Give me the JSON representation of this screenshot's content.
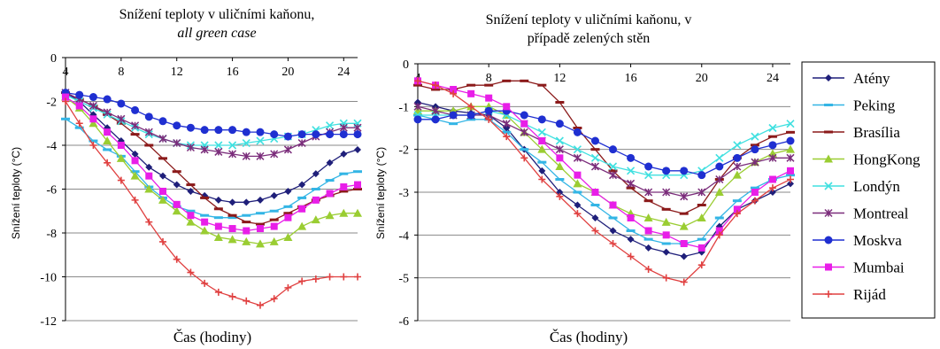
{
  "chart_data": [
    {
      "type": "line",
      "title": "Snížení teploty v uličními kaňonu,",
      "subtitle": "all green case",
      "xlabel": "Čas (hodiny)",
      "ylabel": "Snížení teploty (°C)",
      "xlim": [
        4,
        25
      ],
      "ylim": [
        -12,
        0
      ],
      "xticks": [
        4,
        8,
        12,
        16,
        20,
        24
      ],
      "yticks": [
        0,
        -2,
        -4,
        -6,
        -8,
        -10,
        -12
      ],
      "grid": "horizontal",
      "x": [
        4,
        5,
        6,
        7,
        8,
        9,
        10,
        11,
        12,
        13,
        14,
        15,
        16,
        17,
        18,
        19,
        20,
        21,
        22,
        23,
        24,
        25
      ],
      "series": [
        {
          "name": "Atény",
          "color": "#1f1f7a",
          "marker": "diamond",
          "values": [
            -1.6,
            -2.0,
            -2.6,
            -3.2,
            -3.8,
            -4.4,
            -5.0,
            -5.4,
            -5.8,
            -6.1,
            -6.3,
            -6.5,
            -6.6,
            -6.6,
            -6.5,
            -6.3,
            -6.1,
            -5.8,
            -5.3,
            -4.8,
            -4.4,
            -4.2
          ]
        },
        {
          "name": "Peking",
          "color": "#33b5e5",
          "marker": "dash",
          "values": [
            -2.8,
            -3.2,
            -3.8,
            -4.2,
            -4.5,
            -5.2,
            -5.9,
            -6.4,
            -6.8,
            -7.0,
            -7.2,
            -7.3,
            -7.3,
            -7.2,
            -7.1,
            -7.0,
            -6.8,
            -6.4,
            -6.0,
            -5.6,
            -5.3,
            -5.2
          ]
        },
        {
          "name": "Brasília",
          "color": "#8b1a1a",
          "marker": "dash",
          "values": [
            -1.6,
            -1.9,
            -2.2,
            -2.6,
            -3.0,
            -3.5,
            -4.0,
            -4.6,
            -5.2,
            -5.8,
            -6.4,
            -6.9,
            -7.2,
            -7.5,
            -7.6,
            -7.4,
            -7.1,
            -6.8,
            -6.5,
            -6.3,
            -6.1,
            -6.0
          ]
        },
        {
          "name": "HongKong",
          "color": "#9acd32",
          "marker": "triangle",
          "values": [
            -1.8,
            -2.3,
            -3.0,
            -3.8,
            -4.6,
            -5.4,
            -6.0,
            -6.5,
            -7.0,
            -7.5,
            -7.9,
            -8.2,
            -8.3,
            -8.4,
            -8.5,
            -8.4,
            -8.2,
            -7.7,
            -7.4,
            -7.2,
            -7.1,
            -7.1
          ]
        },
        {
          "name": "Londýn",
          "color": "#40e0e0",
          "marker": "x",
          "values": [
            -1.7,
            -2.0,
            -2.3,
            -2.6,
            -2.9,
            -3.2,
            -3.5,
            -3.7,
            -3.9,
            -4.0,
            -4.0,
            -4.0,
            -4.0,
            -3.9,
            -3.8,
            -3.7,
            -3.6,
            -3.5,
            -3.3,
            -3.1,
            -3.0,
            -3.0
          ]
        },
        {
          "name": "Montreal",
          "color": "#7b2d7b",
          "marker": "star",
          "values": [
            -1.6,
            -1.9,
            -2.2,
            -2.5,
            -2.8,
            -3.1,
            -3.4,
            -3.7,
            -3.9,
            -4.1,
            -4.2,
            -4.3,
            -4.4,
            -4.5,
            -4.5,
            -4.4,
            -4.2,
            -3.9,
            -3.6,
            -3.4,
            -3.2,
            -3.2
          ]
        },
        {
          "name": "Moskva",
          "color": "#1f2fd1",
          "marker": "circle",
          "values": [
            -1.6,
            -1.7,
            -1.8,
            -1.9,
            -2.1,
            -2.4,
            -2.7,
            -2.9,
            -3.1,
            -3.2,
            -3.3,
            -3.3,
            -3.3,
            -3.4,
            -3.4,
            -3.5,
            -3.6,
            -3.5,
            -3.5,
            -3.5,
            -3.5,
            -3.5
          ]
        },
        {
          "name": "Mumbai",
          "color": "#e81ee8",
          "marker": "square",
          "values": [
            -1.8,
            -2.2,
            -2.8,
            -3.4,
            -4.0,
            -4.7,
            -5.4,
            -6.1,
            -6.7,
            -7.2,
            -7.5,
            -7.7,
            -7.8,
            -7.9,
            -7.8,
            -7.7,
            -7.3,
            -6.9,
            -6.5,
            -6.2,
            -5.9,
            -5.8
          ]
        },
        {
          "name": "Rijád",
          "color": "#e04040",
          "marker": "plus",
          "values": [
            -2.0,
            -3.0,
            -4.0,
            -4.8,
            -5.6,
            -6.5,
            -7.5,
            -8.4,
            -9.2,
            -9.8,
            -10.3,
            -10.7,
            -10.9,
            -11.1,
            -11.3,
            -11.0,
            -10.5,
            -10.2,
            -10.1,
            -10.0,
            -10.0,
            -10.0
          ]
        }
      ]
    },
    {
      "type": "line",
      "title": "Snížení teploty v uličními kaňonu, v",
      "subtitle": "případě  zelených stěn",
      "xlabel": "Čas (hodiny)",
      "ylabel": "Snížení teploty (°C)",
      "xlim": [
        4,
        25
      ],
      "ylim": [
        -6,
        0
      ],
      "xticks": [
        4,
        8,
        12,
        16,
        20,
        24
      ],
      "yticks": [
        0,
        -1,
        -2,
        -3,
        -4,
        -5,
        -6
      ],
      "grid": "horizontal",
      "legend": "right",
      "x": [
        4,
        5,
        6,
        7,
        8,
        9,
        10,
        11,
        12,
        13,
        14,
        15,
        16,
        17,
        18,
        19,
        20,
        21,
        22,
        23,
        24,
        25
      ],
      "series": [
        {
          "name": "Atény",
          "color": "#1f1f7a",
          "marker": "diamond",
          "values": [
            -0.9,
            -1.0,
            -1.1,
            -1.15,
            -1.2,
            -1.5,
            -2.0,
            -2.5,
            -3.0,
            -3.3,
            -3.6,
            -3.9,
            -4.1,
            -4.3,
            -4.4,
            -4.5,
            -4.4,
            -3.8,
            -3.4,
            -3.2,
            -3.0,
            -2.8
          ]
        },
        {
          "name": "Peking",
          "color": "#33b5e5",
          "marker": "dash",
          "values": [
            -1.2,
            -1.3,
            -1.4,
            -1.3,
            -1.3,
            -1.6,
            -2.0,
            -2.3,
            -2.7,
            -3.0,
            -3.3,
            -3.6,
            -3.9,
            -4.1,
            -4.2,
            -4.2,
            -4.1,
            -3.6,
            -3.2,
            -2.9,
            -2.7,
            -2.6
          ]
        },
        {
          "name": "Brasília",
          "color": "#8b1a1a",
          "marker": "dash",
          "values": [
            -0.5,
            -0.6,
            -0.6,
            -0.5,
            -0.5,
            -0.4,
            -0.4,
            -0.5,
            -0.9,
            -1.5,
            -2.0,
            -2.5,
            -2.9,
            -3.2,
            -3.4,
            -3.5,
            -3.3,
            -2.7,
            -2.2,
            -1.9,
            -1.7,
            -1.6
          ]
        },
        {
          "name": "HongKong",
          "color": "#9acd32",
          "marker": "triangle",
          "values": [
            -1.1,
            -1.1,
            -1.1,
            -1.0,
            -1.0,
            -1.2,
            -1.6,
            -2.0,
            -2.4,
            -2.8,
            -3.0,
            -3.3,
            -3.5,
            -3.6,
            -3.7,
            -3.8,
            -3.6,
            -3.0,
            -2.6,
            -2.3,
            -2.1,
            -2.0
          ]
        },
        {
          "name": "Londýn",
          "color": "#40e0e0",
          "marker": "x",
          "values": [
            -1.2,
            -1.2,
            -1.2,
            -1.2,
            -1.1,
            -1.2,
            -1.4,
            -1.6,
            -1.8,
            -2.0,
            -2.2,
            -2.4,
            -2.5,
            -2.6,
            -2.6,
            -2.6,
            -2.5,
            -2.2,
            -1.9,
            -1.7,
            -1.5,
            -1.4
          ]
        },
        {
          "name": "Montreal",
          "color": "#7b2d7b",
          "marker": "star",
          "values": [
            -1.0,
            -1.1,
            -1.2,
            -1.2,
            -1.2,
            -1.4,
            -1.6,
            -1.8,
            -2.0,
            -2.2,
            -2.4,
            -2.6,
            -2.8,
            -3.0,
            -3.0,
            -3.1,
            -3.0,
            -2.7,
            -2.4,
            -2.3,
            -2.2,
            -2.2
          ]
        },
        {
          "name": "Moskva",
          "color": "#1f2fd1",
          "marker": "circle",
          "values": [
            -1.3,
            -1.3,
            -1.2,
            -1.2,
            -1.1,
            -1.1,
            -1.2,
            -1.3,
            -1.4,
            -1.6,
            -1.8,
            -2.0,
            -2.2,
            -2.4,
            -2.5,
            -2.5,
            -2.6,
            -2.4,
            -2.2,
            -2.0,
            -1.9,
            -1.8
          ]
        },
        {
          "name": "Mumbai",
          "color": "#e81ee8",
          "marker": "square",
          "values": [
            -0.4,
            -0.5,
            -0.6,
            -0.7,
            -0.8,
            -1.0,
            -1.4,
            -1.8,
            -2.2,
            -2.6,
            -3.0,
            -3.3,
            -3.6,
            -3.9,
            -4.0,
            -4.2,
            -4.3,
            -3.9,
            -3.4,
            -3.0,
            -2.7,
            -2.5
          ]
        },
        {
          "name": "Rijád",
          "color": "#e04040",
          "marker": "plus",
          "values": [
            -0.4,
            -0.5,
            -0.7,
            -1.0,
            -1.3,
            -1.7,
            -2.2,
            -2.7,
            -3.1,
            -3.5,
            -3.9,
            -4.2,
            -4.5,
            -4.8,
            -5.0,
            -5.1,
            -4.7,
            -4.0,
            -3.5,
            -3.2,
            -2.9,
            -2.7
          ]
        }
      ]
    }
  ]
}
